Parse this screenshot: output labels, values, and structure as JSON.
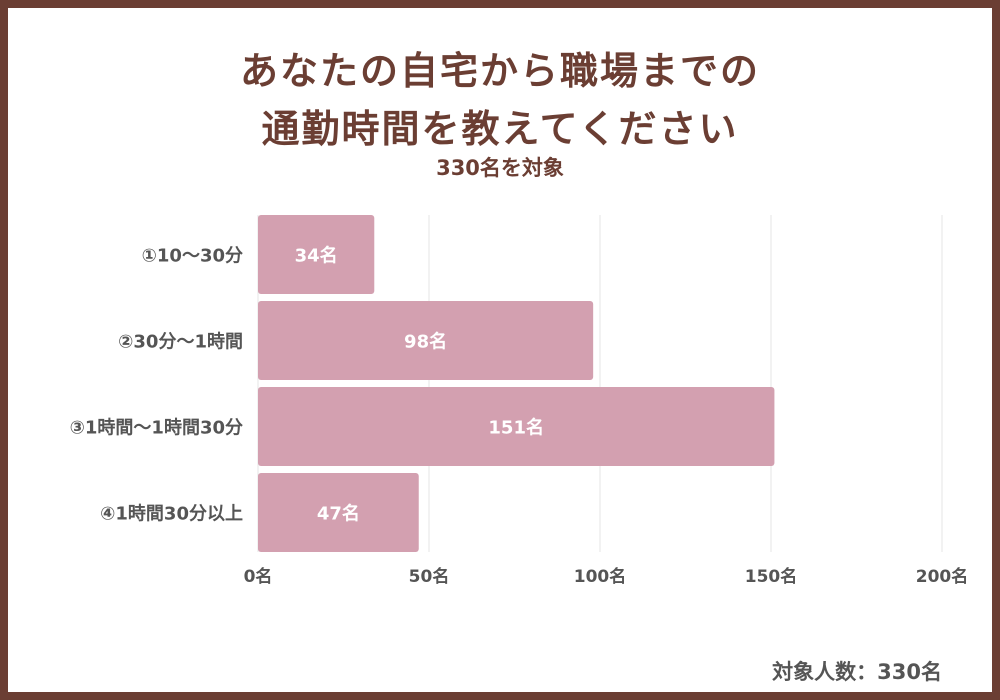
{
  "header": {
    "title_line1": "あなたの自宅から職場までの",
    "title_line2": "通勤時間を教えてください",
    "subtitle": "330名を対象"
  },
  "footer": {
    "note": "対象人数：330名"
  },
  "chart_data": {
    "type": "bar",
    "orientation": "horizontal",
    "categories": [
      "①10〜30分",
      "②30分〜1時間",
      "③1時間〜1時間30分",
      "④1時間30分以上"
    ],
    "values": [
      34,
      98,
      151,
      47
    ],
    "value_labels": [
      "34名",
      "98名",
      "151名",
      "47名"
    ],
    "x_ticks": [
      0,
      50,
      100,
      150,
      200
    ],
    "x_tick_labels": [
      "0名",
      "50名",
      "100名",
      "150名",
      "200名"
    ],
    "xlim": [
      0,
      200
    ],
    "grid": true,
    "colors": {
      "bar": "#d3a0b0",
      "frame": "#6b3e33",
      "title": "#6b3e33",
      "grid": "#e6e6e6",
      "label": "#555555",
      "value_text": "#ffffff"
    }
  }
}
